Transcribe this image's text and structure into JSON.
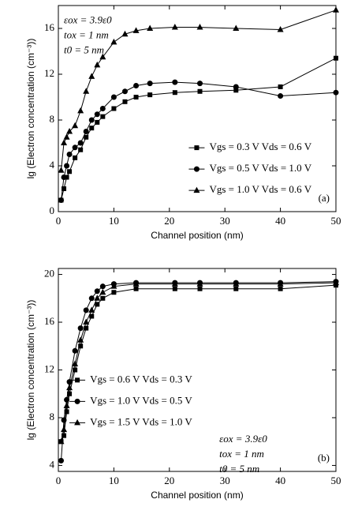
{
  "chart_data": [
    {
      "type": "line",
      "panel_label": "(a)",
      "x_label": "Channel position (nm)",
      "y_label": "lg (Electron concentration (cm⁻³))",
      "xlim": [
        0,
        50
      ],
      "xticks": [
        0,
        10,
        20,
        30,
        40,
        50
      ],
      "ylim": [
        0,
        18
      ],
      "yticks": [
        0,
        4,
        8,
        12,
        16
      ],
      "legend": "center right",
      "annotations": [
        "εox = 3.9ε0",
        "tox = 1 nm",
        "t0 = 5 nm"
      ],
      "x": [
        0.5,
        1,
        1.5,
        2,
        3,
        4,
        5,
        6,
        7,
        8,
        10,
        12,
        14,
        16.5,
        21,
        25.5,
        32,
        40,
        50
      ],
      "series": [
        {
          "name": "Vgs = 0.3 V Vds = 0.6 V",
          "color": "#000000",
          "marker": "square",
          "values": [
            1.0,
            2,
            3,
            3.5,
            4.7,
            5.4,
            6.5,
            7.3,
            7.8,
            8.3,
            9,
            9.6,
            10,
            10.2,
            10.4,
            10.5,
            10.6,
            10.9,
            13.4
          ]
        },
        {
          "name": "Vgs = 0.5 V Vds = 1.0 V",
          "color": "#000000",
          "marker": "circle",
          "values": [
            1.0,
            3,
            4,
            5,
            5.6,
            6,
            7,
            8,
            8.5,
            9,
            10,
            10.5,
            11,
            11.2,
            11.3,
            11.2,
            10.9,
            10.1,
            10.4
          ]
        },
        {
          "name": "Vgs = 1.0 V Vds = 0.6 V",
          "color": "#000000",
          "marker": "triangle",
          "values": [
            3.6,
            6,
            6.5,
            7,
            7.5,
            8.8,
            10.5,
            11.8,
            12.8,
            13.5,
            14.8,
            15.5,
            15.8,
            16,
            16.1,
            16.1,
            16,
            15.9,
            17.6
          ]
        }
      ]
    },
    {
      "type": "line",
      "panel_label": "(b)",
      "x_label": "Channel position (nm)",
      "y_label": "lg (Electron concentration (cm⁻³))",
      "xlim": [
        0,
        50
      ],
      "xticks": [
        0,
        10,
        20,
        30,
        40,
        50
      ],
      "ylim": [
        3.5,
        20.5
      ],
      "yticks": [
        4,
        8,
        12,
        16,
        20
      ],
      "legend": "lower left",
      "annotations": [
        "εox = 3.9ε0",
        "tox = 1 nm",
        "t0 = 5 nm"
      ],
      "x": [
        0.5,
        1,
        1.5,
        2,
        3,
        4,
        5,
        6,
        7,
        8,
        10,
        14,
        21,
        25.5,
        32,
        40,
        50
      ],
      "series": [
        {
          "name": "Vgs = 0.6 V Vds = 0.3 V",
          "color": "#000000",
          "marker": "square",
          "values": [
            6,
            6.5,
            8.5,
            10,
            12,
            14,
            15.5,
            16.5,
            17.5,
            18,
            18.5,
            18.8,
            18.8,
            18.8,
            18.8,
            18.8,
            19.1
          ]
        },
        {
          "name": "Vgs = 1.0 V Vds = 0.5 V",
          "color": "#000000",
          "marker": "circle",
          "values": [
            4.4,
            7.8,
            9.5,
            11,
            13.6,
            15.5,
            17,
            18,
            18.6,
            19,
            19.2,
            19.3,
            19.3,
            19.3,
            19.3,
            19.3,
            19.4
          ]
        },
        {
          "name": "Vgs = 1.5 V Vds = 1.0 V",
          "color": "#000000",
          "marker": "triangle",
          "values": [
            6,
            7,
            9,
            10.5,
            12.5,
            14.5,
            16,
            17,
            18,
            18.5,
            19,
            19.2,
            19.2,
            19.2,
            19.2,
            19.2,
            19.3
          ]
        }
      ]
    }
  ]
}
